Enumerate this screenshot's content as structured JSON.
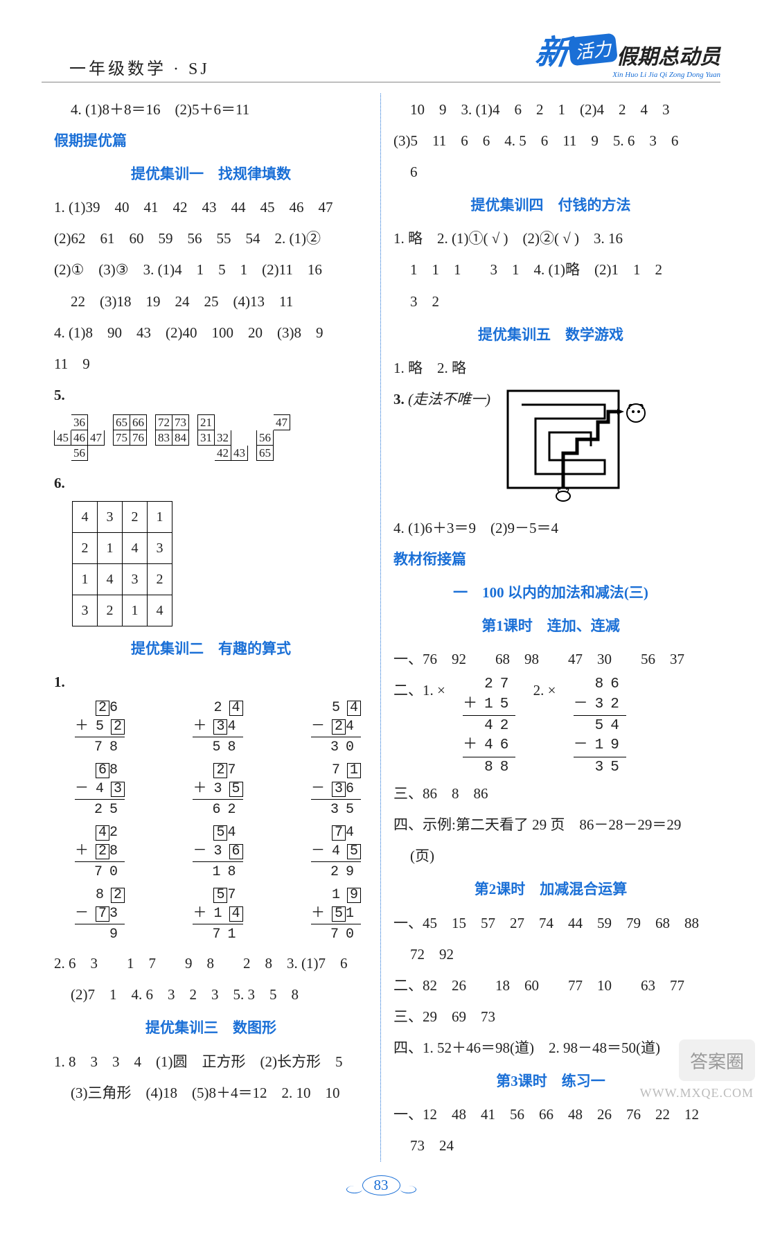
{
  "header": {
    "left": "一年级数学 · SJ",
    "brand_xin": "新",
    "brand_huoli": "活力",
    "brand_tail": "假期总动员",
    "brand_pinyin": "Xin Huo Li Jia Qi Zong Dong Yuan"
  },
  "left_col": {
    "line_4": "4. (1)8＋8＝16　(2)5＋6＝11",
    "tiyou_title": "假期提优篇",
    "jixun1_title": "提优集训一　找规律填数",
    "jx1_l1": "1. (1)39　40　41　42　43　44　45　46　47",
    "jx1_l2": "(2)62　61　60　59　56　55　54　2. (1)②",
    "jx1_l3": "(2)①　(3)③　3. (1)4　1　5　1　(2)11　16",
    "jx1_l4": "22　(3)18　19　24　25　(4)13　11",
    "jx1_l5": "4. (1)8　90　43　(2)40　100　20　(3)8　9",
    "jx1_l6": "11　9",
    "q5_label": "5.",
    "q5_clusters": [
      [
        [
          "",
          "36",
          ""
        ],
        [
          "45",
          "46",
          "47"
        ],
        [
          "",
          "56",
          ""
        ]
      ],
      [
        [
          "65",
          "66"
        ],
        [
          "75",
          "76"
        ]
      ],
      [
        [
          "72",
          "73"
        ],
        [
          "83",
          "84"
        ]
      ],
      [
        [
          "21",
          "",
          ""
        ],
        [
          "31",
          "32",
          ""
        ],
        [
          "",
          "42",
          "43"
        ]
      ],
      [
        [
          "",
          "47"
        ],
        [
          "56",
          ""
        ],
        [
          "65",
          ""
        ]
      ]
    ],
    "q6_label": "6.",
    "q6_grid": [
      [
        "4",
        "3",
        "2",
        "1"
      ],
      [
        "2",
        "1",
        "4",
        "3"
      ],
      [
        "1",
        "4",
        "3",
        "2"
      ],
      [
        "3",
        "2",
        "1",
        "4"
      ]
    ],
    "jixun2_title": "提优集训二　有趣的算式",
    "jx2_q1_label": "1.",
    "arith_rows": [
      [
        {
          "rows": [
            [
              " ",
              "[2]",
              "6"
            ],
            [
              "＋",
              "5",
              "[2]"
            ]
          ],
          "res": [
            "",
            "7",
            "8"
          ]
        },
        {
          "rows": [
            [
              " ",
              "2",
              "[4]"
            ],
            [
              "＋",
              "[3]",
              "4"
            ]
          ],
          "res": [
            "",
            "5",
            "8"
          ]
        },
        {
          "rows": [
            [
              " ",
              "5",
              "[4]"
            ],
            [
              "－",
              "[2]",
              "4"
            ]
          ],
          "res": [
            "",
            "3",
            "0"
          ]
        }
      ],
      [
        {
          "rows": [
            [
              " ",
              "[6]",
              "8"
            ],
            [
              "－",
              "4",
              "[3]"
            ]
          ],
          "res": [
            "",
            "2",
            "5"
          ]
        },
        {
          "rows": [
            [
              " ",
              "[2]",
              "7"
            ],
            [
              "＋",
              "3",
              "[5]"
            ]
          ],
          "res": [
            "",
            "6",
            "2"
          ]
        },
        {
          "rows": [
            [
              " ",
              "7",
              "[1]"
            ],
            [
              "－",
              "[3]",
              "6"
            ]
          ],
          "res": [
            "",
            "3",
            "5"
          ]
        }
      ],
      [
        {
          "rows": [
            [
              " ",
              "[4]",
              "2"
            ],
            [
              "＋",
              "[2]",
              "8"
            ]
          ],
          "res": [
            "",
            "7",
            "0"
          ]
        },
        {
          "rows": [
            [
              " ",
              "[5]",
              "4"
            ],
            [
              "－",
              "3",
              "[6]"
            ]
          ],
          "res": [
            "",
            "1",
            "8"
          ]
        },
        {
          "rows": [
            [
              " ",
              "[7]",
              "4"
            ],
            [
              "－",
              "4",
              "[5]"
            ]
          ],
          "res": [
            "",
            "2",
            "9"
          ]
        }
      ],
      [
        {
          "rows": [
            [
              " ",
              "8",
              "[2]"
            ],
            [
              "－",
              "[7]",
              "3"
            ]
          ],
          "res": [
            "",
            "",
            "9"
          ]
        },
        {
          "rows": [
            [
              " ",
              "[5]",
              "7"
            ],
            [
              "＋",
              "1",
              "[4]"
            ]
          ],
          "res": [
            "",
            "7",
            "1"
          ]
        },
        {
          "rows": [
            [
              " ",
              "1",
              "[9]"
            ],
            [
              "＋",
              "[5]",
              "1"
            ]
          ],
          "res": [
            "",
            "7",
            "0"
          ]
        }
      ]
    ],
    "jx2_l2": "2. 6　3　　1　7　　9　8　　2　8　3. (1)7　6",
    "jx2_l3": "(2)7　1　4. 6　3　2　3　5. 3　5　8",
    "jixun3_title": "提优集训三　数图形",
    "jx3_l1": "1. 8　3　3　4　(1)圆　正方形　(2)长方形　5",
    "jx3_l2": "(3)三角形　(4)18　(5)8＋4＝12　2. 10　10"
  },
  "right_col": {
    "r_l1": "10　9　3. (1)4　6　2　1　(2)4　2　4　3",
    "r_l2": "(3)5　11　6　6　4. 5　6　11　9　5. 6　3　6",
    "r_l3": "6",
    "jixun4_title": "提优集训四　付钱的方法",
    "jx4_l1": "1. 略　2. (1)①( √ )　(2)②( √ )　3. 16",
    "jx4_l2": "1　1　1　　3　1　4. (1)略　(2)1　1　2",
    "jx4_l3": "3　2",
    "jixun5_title": "提优集训五　数学游戏",
    "jx5_l1": "1. 略　2. 略",
    "jx5_q3_label": "3.",
    "jx5_q3_note": "(走法不唯一)",
    "jx5_l4": "4. (1)6＋3＝9　(2)9－5＝4",
    "xianjie_title": "教材衔接篇",
    "unit1_title": "一　100 以内的加法和减法(三)",
    "lesson1_title": "第1课时　连加、连减",
    "l1_yi": "一、76　92　　68　98　　47　30　　56　37",
    "l1_er_lead": "二、1. ×",
    "l1_er_lead2": "2. ×",
    "stack1": [
      [
        "",
        "2",
        "7"
      ],
      [
        "＋",
        "1",
        "5"
      ],
      [
        "hr"
      ],
      [
        "",
        "4",
        "2"
      ],
      [
        "＋",
        "4",
        "6"
      ],
      [
        "hr"
      ],
      [
        "",
        "8",
        "8"
      ]
    ],
    "stack2": [
      [
        "",
        "8",
        "6"
      ],
      [
        "－",
        "3",
        "2"
      ],
      [
        "hr"
      ],
      [
        "",
        "5",
        "4"
      ],
      [
        "－",
        "1",
        "9"
      ],
      [
        "hr"
      ],
      [
        "",
        "3",
        "5"
      ]
    ],
    "l1_san": "三、86　8　86",
    "l1_si": "四、示例:第二天看了 29 页　86－28－29＝29",
    "l1_si2": "(页)",
    "lesson2_title": "第2课时　加减混合运算",
    "l2_yi": "一、45　15　57　27　74　44　59　79　68　88",
    "l2_yi2": "72　92",
    "l2_er": "二、82　26　　18　60　　77　10　　63　77",
    "l2_san": "三、29　69　73",
    "l2_si": "四、1. 52＋46＝98(道)　2. 98－48＝50(道)",
    "lesson3_title": "第3课时　练习一",
    "l3_yi": "一、12　48　41　56　66　48　26　76　22　12",
    "l3_yi2": "73　24"
  },
  "footer": {
    "page": "83",
    "watermark": "WWW.MXQE.COM",
    "badge": "答案圈"
  },
  "colors": {
    "accent": "#1a6fd6",
    "text": "#222222",
    "bg": "#ffffff"
  }
}
